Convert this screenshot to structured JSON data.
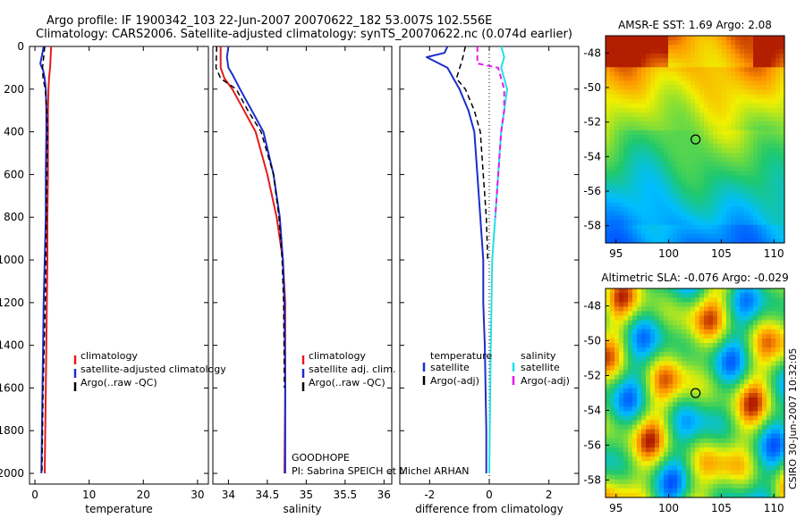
{
  "header": {
    "line1": "Argo profile: IF 1900342_103 22-Jun-2007 20070622_182 53.007S 102.556E",
    "line2": "Climatology: CARS2006. Satellite-adjusted climatology: synTS_20070622.nc (0.074d earlier)"
  },
  "chart_data": [
    {
      "type": "line",
      "id": "temperature",
      "xlabel": "temperature",
      "xlim": [
        -1,
        32
      ],
      "ylim": [
        2050,
        0
      ],
      "yreversed": true,
      "xticks": [
        0,
        10,
        20,
        30
      ],
      "yticks": [
        0,
        200,
        400,
        600,
        800,
        1000,
        1200,
        1400,
        1600,
        1800,
        2000
      ],
      "series": [
        {
          "name": "climatology",
          "color": "#e51b1b",
          "dash": false,
          "width": 2,
          "x": [
            3.0,
            2.9,
            2.8,
            2.6,
            2.5,
            2.4,
            2.4,
            2.4,
            2.3,
            2.3,
            2.2,
            2.1,
            2.0,
            1.9,
            1.8
          ],
          "y": [
            0,
            50,
            100,
            150,
            200,
            300,
            400,
            600,
            800,
            1000,
            1200,
            1400,
            1600,
            1800,
            2000
          ]
        },
        {
          "name": "satellite-adjusted climatology",
          "color": "#1c2ecc",
          "dash": false,
          "width": 2,
          "x": [
            1.6,
            1.4,
            1.0,
            1.3,
            1.5,
            1.8,
            2.0,
            2.1,
            2.1,
            2.0,
            2.0,
            1.8,
            1.6,
            1.5,
            1.4,
            1.3,
            1.2
          ],
          "y": [
            0,
            30,
            80,
            100,
            110,
            150,
            200,
            300,
            400,
            600,
            800,
            1000,
            1200,
            1400,
            1600,
            1800,
            2000
          ]
        },
        {
          "name": "Argo(..raw -QC)",
          "color": "#000000",
          "dash": true,
          "width": 1.5,
          "x": [
            1.8,
            1.6,
            1.4,
            1.5,
            1.9,
            2.2,
            2.3,
            2.2,
            2.1,
            2.0,
            1.9,
            1.7,
            1.5,
            1.4,
            1.3
          ],
          "y": [
            0,
            50,
            100,
            150,
            200,
            300,
            400,
            600,
            800,
            1000,
            1200,
            1400,
            1600,
            1800,
            2000
          ]
        }
      ],
      "legend": {
        "placement": "lower-right"
      }
    },
    {
      "type": "line",
      "id": "salinity",
      "xlabel": "salinity",
      "xlim": [
        33.8,
        36.1
      ],
      "ylim": [
        2050,
        0
      ],
      "yreversed": true,
      "xticks": [
        34,
        34.5,
        35,
        35.5,
        36
      ],
      "xticklabels": [
        "34",
        "34.5",
        "35",
        "35.5",
        "36"
      ],
      "series": [
        {
          "name": "climatology",
          "color": "#e51b1b",
          "dash": false,
          "width": 2,
          "x": [
            33.9,
            33.9,
            33.95,
            34.05,
            34.2,
            34.35,
            34.5,
            34.62,
            34.7,
            34.73,
            34.73,
            34.72
          ],
          "y": [
            0,
            100,
            150,
            200,
            300,
            400,
            600,
            800,
            1000,
            1200,
            1600,
            2000
          ]
        },
        {
          "name": "satellite adj. clim.",
          "color": "#1c2ecc",
          "dash": false,
          "width": 2,
          "x": [
            34.0,
            33.98,
            34.0,
            34.05,
            34.15,
            34.3,
            34.45,
            34.58,
            34.66,
            34.7,
            34.72,
            34.73,
            34.73
          ],
          "y": [
            0,
            50,
            100,
            130,
            200,
            300,
            400,
            600,
            800,
            1000,
            1200,
            1600,
            2000
          ]
        },
        {
          "name": "Argo(..raw -QC)",
          "color": "#000000",
          "dash": true,
          "width": 1.5,
          "x": [
            33.85,
            33.84,
            33.9,
            34.1,
            34.25,
            34.42,
            34.58,
            34.65,
            34.69,
            34.71,
            34.72
          ],
          "y": [
            0,
            100,
            150,
            200,
            300,
            400,
            600,
            800,
            1000,
            1200,
            1600
          ]
        }
      ],
      "legend": {
        "placement": "lower-right"
      },
      "annotation": [
        "GOODHOPE",
        "PI: Sabrina SPEICH et Michel ARHAN"
      ]
    },
    {
      "type": "line",
      "id": "difference",
      "xlabel": "difference from climatology",
      "xlim": [
        -3,
        3
      ],
      "ylim": [
        2050,
        0
      ],
      "yreversed": true,
      "xticks": [
        -2,
        0,
        2
      ],
      "series": [
        {
          "name": "temperature satellite",
          "color": "#1c2ecc",
          "dash": false,
          "width": 2,
          "x": [
            -1.4,
            -1.5,
            -2.1,
            -1.4,
            -1.0,
            -0.7,
            -0.5,
            -0.4,
            -0.3,
            -0.2,
            -0.2,
            -0.15,
            -0.1,
            -0.1
          ],
          "y": [
            0,
            30,
            50,
            100,
            200,
            300,
            400,
            600,
            800,
            1000,
            1200,
            1400,
            1800,
            2000
          ]
        },
        {
          "name": "temperature Argo(-adj)",
          "color": "#000000",
          "dash": true,
          "width": 1.5,
          "x": [
            -0.8,
            -0.9,
            -1.1,
            -0.8,
            -0.5,
            -0.3,
            -0.2,
            -0.1,
            -0.05
          ],
          "y": [
            0,
            60,
            150,
            200,
            300,
            400,
            600,
            800,
            1000
          ]
        },
        {
          "name": "salinity satellite",
          "color": "#22e0ea",
          "dash": false,
          "width": 2,
          "x": [
            0.4,
            0.5,
            0.4,
            0.5,
            0.6,
            0.5,
            0.4,
            0.3,
            0.2,
            0.1,
            0.05,
            0.0
          ],
          "y": [
            0,
            50,
            100,
            150,
            200,
            300,
            400,
            600,
            800,
            1000,
            1400,
            2000
          ]
        },
        {
          "name": "salinity Argo(-adj)",
          "color": "#e51be5",
          "dash": true,
          "width": 2,
          "x": [
            -0.4,
            -0.4,
            0.3,
            0.5,
            0.5,
            0.4,
            0.3,
            0.2
          ],
          "y": [
            0,
            80,
            100,
            200,
            300,
            400,
            600,
            800
          ]
        }
      ],
      "zero_line": true,
      "legend": {
        "placement": "lower",
        "groups": [
          "temperature",
          "salinity"
        ]
      }
    },
    {
      "type": "heatmap",
      "id": "sst-map",
      "title": "AMSR-E SST: 1.69  Argo: 2.08",
      "xlim": [
        94,
        111
      ],
      "ylim": [
        -59,
        -47
      ],
      "xticks": [
        95,
        100,
        105,
        110
      ],
      "yticks": [
        -48,
        -50,
        -52,
        -54,
        -56,
        -58
      ],
      "marker": {
        "lon": 102.556,
        "lat": -53.007
      }
    },
    {
      "type": "heatmap",
      "id": "sla-map",
      "title": "Altimetric SLA: -0.076  Argo: -0.029",
      "xlim": [
        94,
        111
      ],
      "ylim": [
        -59,
        -47
      ],
      "xticks": [
        95,
        100,
        105,
        110
      ],
      "yticks": [
        -48,
        -50,
        -52,
        -54,
        -56,
        -58
      ],
      "marker": {
        "lon": 102.556,
        "lat": -53.007
      }
    }
  ],
  "legends": {
    "temperature": [
      "climatology",
      "satellite-adjusted climatology",
      "Argo(..raw -QC)"
    ],
    "salinity": [
      "climatology",
      "satellite adj. clim.",
      "Argo(..raw -QC)"
    ],
    "difference": {
      "temperature_header": "temperature",
      "salinity_header": "salinity",
      "temperature_items": [
        "satellite",
        "Argo(-adj)"
      ],
      "salinity_items": [
        "satellite",
        "Argo(-adj)"
      ]
    }
  },
  "footer_stamp": "CSIRO 30-Jun-2007 10:32:05",
  "colors": {
    "red": "#e51b1b",
    "blue": "#1c2ecc",
    "black": "#000000",
    "cyan": "#22e0ea",
    "magenta": "#e51be5"
  }
}
